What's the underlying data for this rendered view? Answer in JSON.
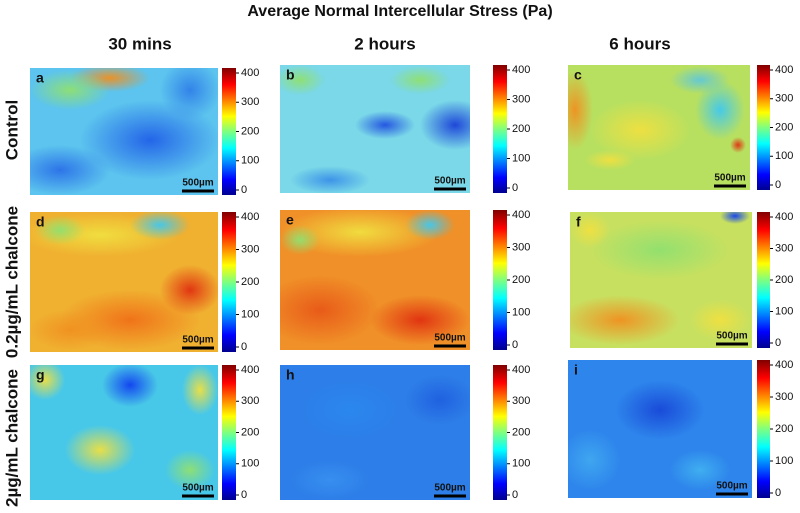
{
  "title": "Average Normal Intercellular Stress (Pa)",
  "columns": [
    "30 mins",
    "2 hours",
    "6 hours"
  ],
  "rows": [
    "Control",
    "0.2µg/mL chalcone",
    "2µg/mL chalcone"
  ],
  "panels": [
    {
      "label": "a",
      "scale": "500µm",
      "ticks": [
        0,
        100,
        200,
        300,
        400
      ]
    },
    {
      "label": "b",
      "scale": "500µm",
      "ticks": [
        0,
        100,
        200,
        300,
        400
      ]
    },
    {
      "label": "c",
      "scale": "500µm",
      "ticks": [
        0,
        100,
        200,
        300,
        400
      ]
    },
    {
      "label": "d",
      "scale": "500µm",
      "ticks": [
        0,
        100,
        200,
        300,
        400
      ]
    },
    {
      "label": "e",
      "scale": "500µm",
      "ticks": [
        0,
        100,
        200,
        300,
        400
      ]
    },
    {
      "label": "f",
      "scale": "500µm",
      "ticks": [
        0,
        100,
        200,
        300,
        400
      ]
    },
    {
      "label": "g",
      "scale": "500µm",
      "ticks": [
        0,
        100,
        200,
        300,
        400
      ]
    },
    {
      "label": "h",
      "scale": "500µm",
      "ticks": [
        0,
        100,
        200,
        300,
        400
      ]
    },
    {
      "label": "i",
      "scale": "500µm",
      "ticks": [
        0,
        100,
        200,
        300,
        400
      ]
    }
  ]
}
